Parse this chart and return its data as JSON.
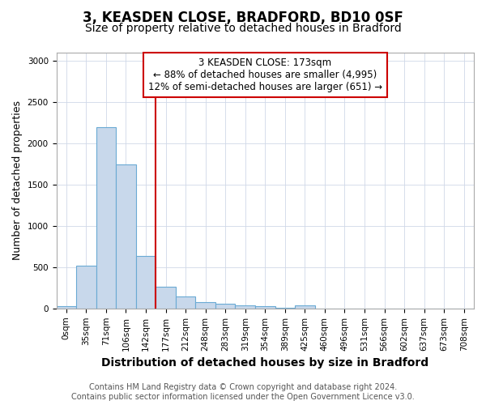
{
  "title_line1": "3, KEASDEN CLOSE, BRADFORD, BD10 0SF",
  "title_line2": "Size of property relative to detached houses in Bradford",
  "xlabel": "Distribution of detached houses by size in Bradford",
  "ylabel": "Number of detached properties",
  "categories": [
    "0sqm",
    "35sqm",
    "71sqm",
    "106sqm",
    "142sqm",
    "177sqm",
    "212sqm",
    "248sqm",
    "283sqm",
    "319sqm",
    "354sqm",
    "389sqm",
    "425sqm",
    "460sqm",
    "496sqm",
    "531sqm",
    "566sqm",
    "602sqm",
    "637sqm",
    "673sqm",
    "708sqm"
  ],
  "values": [
    28,
    520,
    2200,
    1750,
    640,
    265,
    150,
    80,
    55,
    35,
    25,
    10,
    35,
    0,
    0,
    0,
    0,
    0,
    0,
    0,
    0
  ],
  "bar_color": "#c8d8eb",
  "bar_edge_color": "#6aaad4",
  "red_line_index": 5,
  "annotation_text_line1": "3 KEASDEN CLOSE: 173sqm",
  "annotation_text_line2": "← 88% of detached houses are smaller (4,995)",
  "annotation_text_line3": "12% of semi-detached houses are larger (651) →",
  "annotation_box_facecolor": "white",
  "annotation_box_edgecolor": "#cc0000",
  "red_line_color": "#cc0000",
  "ylim": [
    0,
    3100
  ],
  "yticks": [
    0,
    500,
    1000,
    1500,
    2000,
    2500,
    3000
  ],
  "footer_line1": "Contains HM Land Registry data © Crown copyright and database right 2024.",
  "footer_line2": "Contains public sector information licensed under the Open Government Licence v3.0.",
  "bg_color": "#ffffff",
  "plot_bg_color": "#ffffff",
  "title_fontsize": 12,
  "subtitle_fontsize": 10,
  "annotation_fontsize": 8.5,
  "tick_fontsize": 7.5,
  "ylabel_fontsize": 9,
  "xlabel_fontsize": 10,
  "footer_fontsize": 7
}
